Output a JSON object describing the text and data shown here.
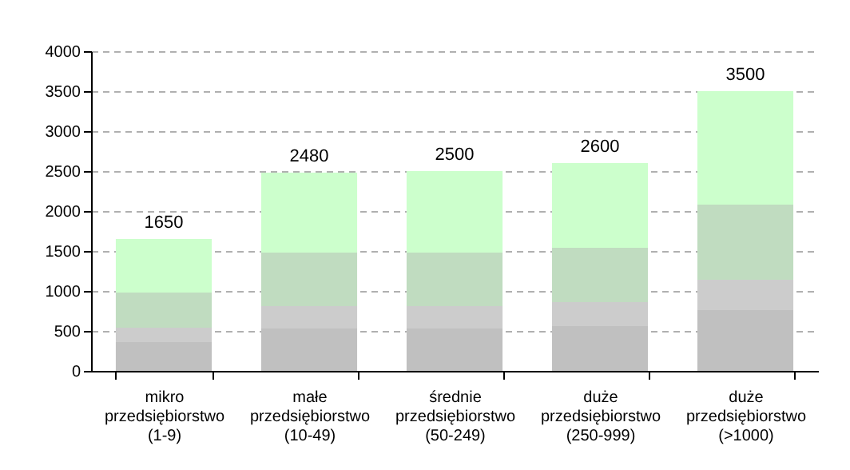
{
  "chart_data": {
    "type": "bar",
    "stacked": true,
    "categories": [
      "mikro\nprzedsiębiorstwo\n(1-9)",
      "małe\nprzedsiębiorstwo\n(10-49)",
      "średnie\nprzedsiębiorstwo\n(50-249)",
      "duże\nprzedsiębiorstwo\n(250-999)",
      "duże\nprzedsiębiorstwo\n(>1000)"
    ],
    "series": [
      {
        "color": "#c0c0c0",
        "values": [
          360,
          530,
          530,
          560,
          760
        ]
      },
      {
        "color": "#cccccc",
        "values": [
          180,
          280,
          280,
          300,
          380
        ]
      },
      {
        "color": "#c0dcc0",
        "values": [
          440,
          670,
          670,
          680,
          940
        ]
      },
      {
        "color": "#ccffcc",
        "values": [
          670,
          1000,
          1020,
          1060,
          1420
        ]
      }
    ],
    "totals": [
      "1650",
      "2480",
      "2500",
      "2600",
      "3500"
    ],
    "ylim": [
      0,
      4000
    ],
    "yticks": [
      0,
      500,
      1000,
      1500,
      2000,
      2500,
      3000,
      3500,
      4000
    ],
    "grid": "y",
    "legend": false
  }
}
